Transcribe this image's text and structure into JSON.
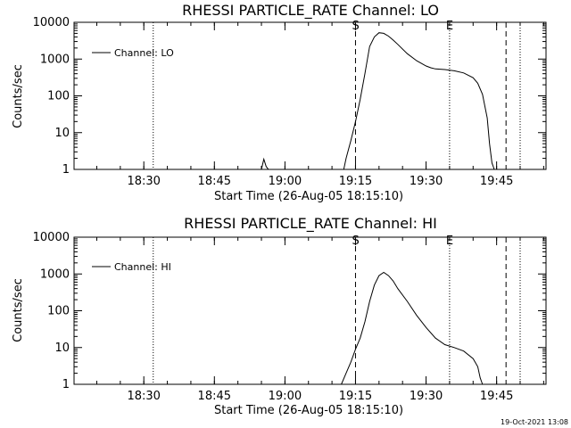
{
  "timestamp": "19-Oct-2021 13:08",
  "chart_data": [
    {
      "type": "line",
      "title": "RHESSI PARTICLE_RATE Channel: LO",
      "xlabel": "Start Time (26-Aug-05 18:15:10)",
      "ylabel": "Counts/sec",
      "y_scale": "log",
      "ylim": [
        1,
        10000
      ],
      "y_ticks": [
        "1",
        "10",
        "100",
        "1000",
        "10000"
      ],
      "xlim": [
        "18:15:10",
        "19:55:30"
      ],
      "x_ticks": [
        "18:30",
        "18:45",
        "19:00",
        "19:15",
        "19:30",
        "19:45"
      ],
      "series": [
        {
          "name": "Channel: LO",
          "x": [
            "18:55",
            "18:55:30",
            "18:56",
            "18:56:30",
            "19:12:30",
            "19:13",
            "19:14",
            "19:15",
            "19:16",
            "19:17",
            "19:18",
            "19:19",
            "19:20",
            "19:21",
            "19:22",
            "19:23",
            "19:24",
            "19:26",
            "19:28",
            "19:30",
            "19:31",
            "19:32",
            "19:34",
            "19:36",
            "19:38",
            "19:40",
            "19:41",
            "19:42",
            "19:43",
            "19:43:30",
            "19:44",
            "19:44:30"
          ],
          "y": [
            1,
            1.9,
            1.2,
            1,
            1,
            2,
            6,
            20,
            80,
            400,
            2200,
            4000,
            5200,
            5000,
            4200,
            3300,
            2500,
            1400,
            900,
            650,
            580,
            540,
            520,
            480,
            420,
            310,
            220,
            110,
            25,
            5,
            1.5,
            1
          ]
        }
      ],
      "markers": [
        {
          "label": "S",
          "x": "19:15",
          "style": "dashed"
        },
        {
          "label": "E",
          "x": "19:35",
          "style": "dotted"
        }
      ]
    },
    {
      "type": "line",
      "title": "RHESSI PARTICLE_RATE Channel: HI",
      "xlabel": "Start Time (26-Aug-05 18:15:10)",
      "ylabel": "Counts/sec",
      "y_scale": "log",
      "ylim": [
        1,
        10000
      ],
      "y_ticks": [
        "1",
        "10",
        "100",
        "1000",
        "10000"
      ],
      "xlim": [
        "18:15:10",
        "19:55:30"
      ],
      "x_ticks": [
        "18:30",
        "18:45",
        "19:00",
        "19:15",
        "19:30",
        "19:45"
      ],
      "series": [
        {
          "name": "Channel: HI",
          "x": [
            "19:12",
            "19:13",
            "19:14",
            "19:15",
            "19:16",
            "19:17",
            "19:18",
            "19:19",
            "19:20",
            "19:21",
            "19:22",
            "19:23",
            "19:24",
            "19:26",
            "19:28",
            "19:30",
            "19:32",
            "19:34",
            "19:36",
            "19:38",
            "19:40",
            "19:41",
            "19:41:30",
            "19:42"
          ],
          "y": [
            1,
            2,
            4,
            9,
            18,
            50,
            180,
            500,
            900,
            1100,
            900,
            650,
            400,
            180,
            75,
            35,
            18,
            12,
            10,
            8,
            5,
            3,
            1.5,
            1
          ]
        }
      ],
      "markers": [
        {
          "label": "S",
          "x": "19:15",
          "style": "dashed"
        },
        {
          "label": "E",
          "x": "19:35",
          "style": "dotted"
        }
      ]
    }
  ]
}
